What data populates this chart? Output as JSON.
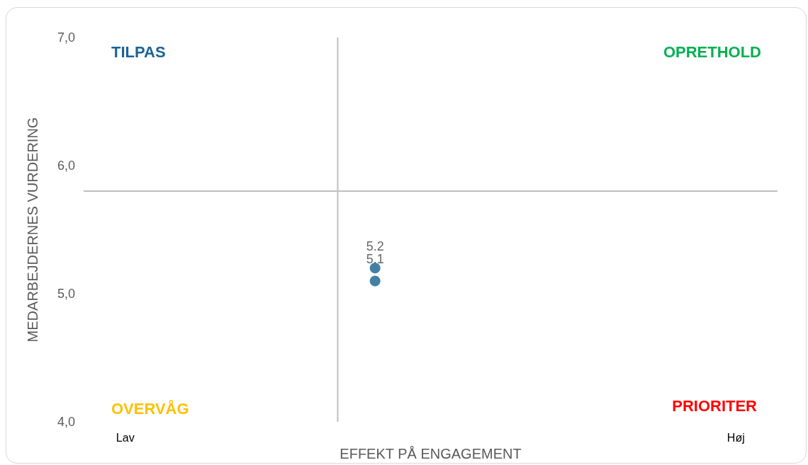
{
  "chart_data": {
    "type": "scatter",
    "xlabel": "EFFEKT PÅ ENGAGEMENT",
    "ylabel": "MEDARBEJDERNES VURDERING",
    "categories": [
      null,
      "Lav",
      null,
      null,
      null,
      null,
      null,
      null,
      null,
      null,
      null,
      null,
      null,
      null,
      null,
      null,
      null,
      null,
      null,
      null,
      null,
      null,
      null,
      "Høj",
      null
    ],
    "series": [
      {
        "color": "#13618f",
        "values": [
          null,
          null,
          null,
          null,
          null,
          null,
          null,
          null,
          null,
          null,
          5.1,
          null,
          null,
          null,
          null,
          null,
          null,
          null,
          null,
          null,
          null,
          null,
          null,
          null,
          null
        ]
      },
      {
        "color": "#13618f",
        "values": [
          null,
          null,
          null,
          null,
          null,
          null,
          null,
          null,
          null,
          null,
          5.2,
          null,
          null,
          null,
          null,
          null,
          null,
          null,
          null,
          null,
          null,
          null,
          null,
          null,
          null
        ]
      }
    ],
    "data_labels": true,
    "marker": "circle",
    "ylim": [
      4,
      7
    ],
    "yticks": [
      {
        "value": 4,
        "label": "4,0"
      },
      {
        "value": 5,
        "label": "5,0"
      },
      {
        "value": 6,
        "label": "6,0"
      },
      {
        "value": 7,
        "label": "7,0"
      }
    ],
    "grid": false,
    "ref_lines": [
      {
        "axis": "y",
        "value": 5.8,
        "label": null,
        "color": "#bfbfbf"
      }
    ],
    "annotations": [
      "TILPAS",
      "OPRETHOLD",
      "OVERVÅG",
      "PRIORITER"
    ]
  }
}
